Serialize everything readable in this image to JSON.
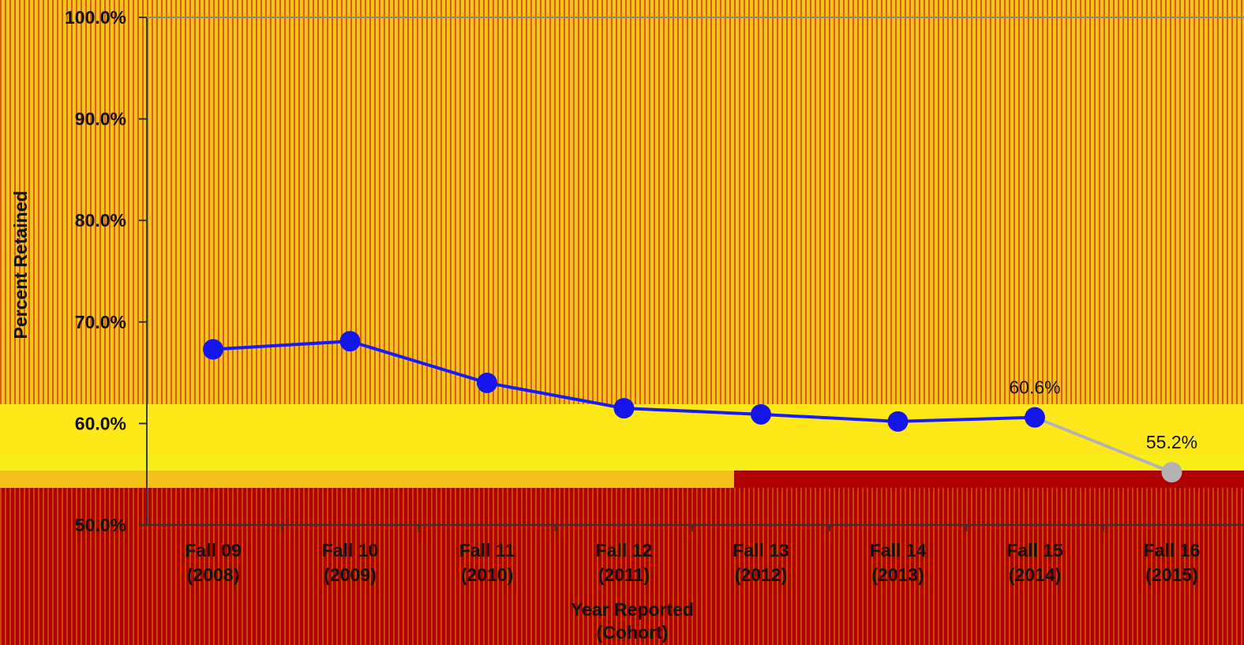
{
  "chart_data": {
    "type": "line",
    "title": "",
    "ylabel": "Percent Retained",
    "xlabel_lines": [
      "Year Reported",
      "(Cohort)"
    ],
    "ylim": [
      50,
      100
    ],
    "yticks": [
      50,
      60,
      70,
      80,
      90,
      100
    ],
    "ytick_labels": [
      "50.0%",
      "60.0%",
      "70.0%",
      "80.0%",
      "90.0%",
      "100.0%"
    ],
    "categories": [
      [
        "Fall 09",
        "(2008)"
      ],
      [
        "Fall 10",
        "(2009)"
      ],
      [
        "Fall 11",
        "(2010)"
      ],
      [
        "Fall 12",
        "(2011)"
      ],
      [
        "Fall 13",
        "(2012)"
      ],
      [
        "Fall 14",
        "(2013)"
      ],
      [
        "Fall 15",
        "(2014)"
      ],
      [
        "Fall 16",
        "(2015)"
      ]
    ],
    "values": [
      67.3,
      68.1,
      64.0,
      61.5,
      60.9,
      60.2,
      60.6,
      55.2
    ],
    "data_labels": [
      "",
      "",
      "",
      "",
      "",
      "",
      "60.6%",
      "55.2%"
    ],
    "colors": {
      "main_line": "#1a1aff",
      "main_marker": "#1414ee",
      "projection_line": "#b3b3b3",
      "projection_marker": "#b3b3b3",
      "axis": "#333333",
      "background_upper": "#f5c21b",
      "background_lower": "#b00000"
    },
    "projection_start_index": 6,
    "grid": false
  }
}
